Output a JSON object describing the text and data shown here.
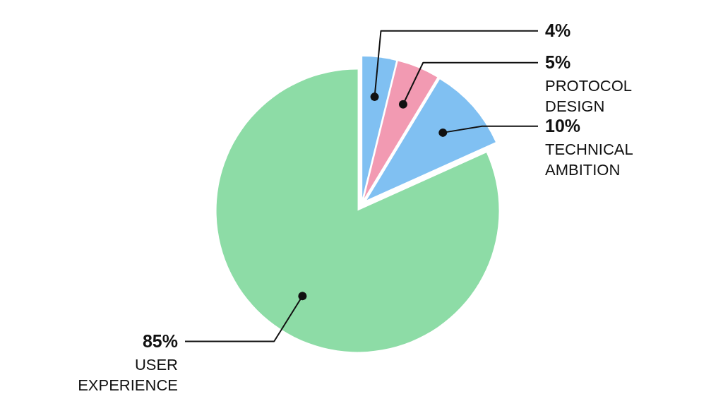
{
  "chart_data": {
    "type": "pie",
    "categories": [
      "USER EXPERIENCE",
      "TECHNICAL AMBITION",
      "PROTOCOL DESIGN",
      null
    ],
    "values": [
      85,
      10,
      5,
      4
    ],
    "colors": [
      "#8ddca6",
      "#80c0f2",
      "#f29ab2",
      "#80c0f2"
    ],
    "value_labels": [
      "85%",
      "10%",
      "5%",
      "4%"
    ]
  }
}
